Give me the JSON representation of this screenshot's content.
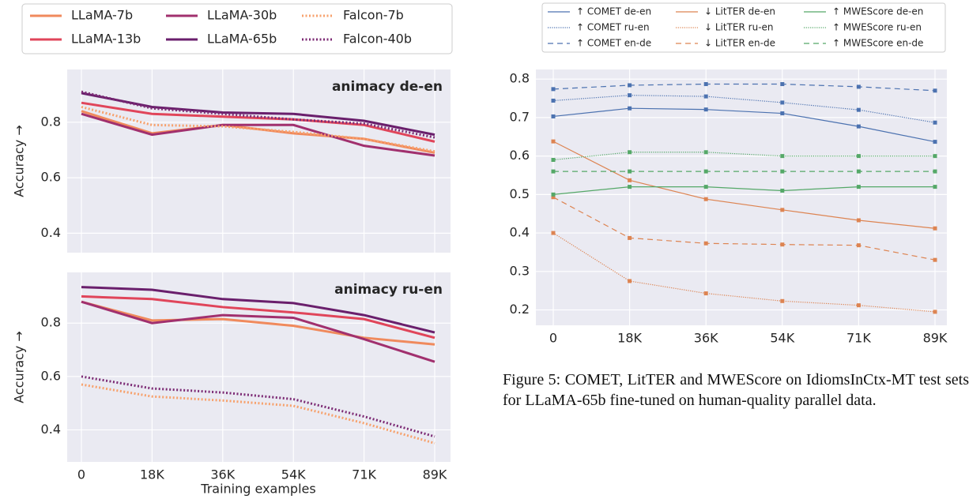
{
  "chart_data": [
    {
      "type": "line",
      "categories": [
        "0",
        "18K",
        "36K",
        "54K",
        "71K",
        "89K"
      ],
      "xlabel": "Training examples",
      "series": [
        {
          "name": "LLaMA-7b",
          "color": "#f08a5d",
          "style": "solid"
        },
        {
          "name": "LLaMA-13b",
          "color": "#e0455a",
          "style": "solid"
        },
        {
          "name": "LLaMA-30b",
          "color": "#a1306e",
          "style": "solid"
        },
        {
          "name": "LLaMA-65b",
          "color": "#6a1f6c",
          "style": "solid"
        },
        {
          "name": "Falcon-7b",
          "color": "#f7a16c",
          "style": "dotted"
        },
        {
          "name": "Falcon-40b",
          "color": "#7c2a74",
          "style": "dotted"
        }
      ],
      "panels": [
        {
          "title": "animacy de-en",
          "ylabel": "Accuracy →",
          "ylim": [
            0.33,
            0.99
          ],
          "yticks": [
            0.4,
            0.6,
            0.8
          ],
          "values": [
            [
              0.84,
              0.76,
              0.79,
              0.76,
              0.74,
              0.69
            ],
            [
              0.87,
              0.83,
              0.82,
              0.81,
              0.79,
              0.73
            ],
            [
              0.83,
              0.755,
              0.79,
              0.79,
              0.715,
              0.68
            ],
            [
              0.905,
              0.855,
              0.835,
              0.83,
              0.805,
              0.755
            ],
            [
              0.855,
              0.79,
              0.785,
              0.765,
              0.74,
              0.695
            ],
            [
              0.91,
              0.85,
              0.83,
              0.81,
              0.795,
              0.745
            ]
          ]
        },
        {
          "title": "animacy ru-en",
          "ylabel": "Accuracy →",
          "ylim": [
            0.28,
            0.99
          ],
          "yticks": [
            0.4,
            0.6,
            0.8
          ],
          "values": [
            [
              0.88,
              0.81,
              0.815,
              0.79,
              0.745,
              0.72
            ],
            [
              0.9,
              0.89,
              0.86,
              0.84,
              0.815,
              0.745
            ],
            [
              0.88,
              0.8,
              0.83,
              0.82,
              0.74,
              0.655
            ],
            [
              0.935,
              0.925,
              0.89,
              0.875,
              0.83,
              0.765
            ],
            [
              0.57,
              0.525,
              0.51,
              0.49,
              0.425,
              0.35
            ],
            [
              0.6,
              0.555,
              0.54,
              0.515,
              0.45,
              0.375
            ]
          ]
        }
      ]
    },
    {
      "type": "line",
      "categories": [
        "0",
        "18K",
        "36K",
        "54K",
        "71K",
        "89K"
      ],
      "ylim": [
        0.16,
        0.825
      ],
      "yticks": [
        0.2,
        0.3,
        0.4,
        0.5,
        0.6,
        0.7,
        0.8
      ],
      "marker": "square",
      "caption": "Figure 5: COMET, LitTER and MWEScore on IdiomsInCtx-MT test sets for LLaMA-65b fine-tuned on human-quality parallel data.",
      "series": [
        {
          "name": "↑ COMET de-en",
          "color": "#4c72b0",
          "style": "solid",
          "values": [
            0.703,
            0.724,
            0.721,
            0.711,
            0.677,
            0.637
          ]
        },
        {
          "name": "↑ COMET ru-en",
          "color": "#4c72b0",
          "style": "dotted",
          "values": [
            0.744,
            0.758,
            0.755,
            0.739,
            0.72,
            0.687
          ]
        },
        {
          "name": "↑ COMET en-de",
          "color": "#4c72b0",
          "style": "dashed",
          "values": [
            0.774,
            0.784,
            0.787,
            0.787,
            0.78,
            0.77
          ]
        },
        {
          "name": "↓ LitTER de-en",
          "color": "#dd8452",
          "style": "solid",
          "values": [
            0.638,
            0.537,
            0.488,
            0.46,
            0.433,
            0.412
          ]
        },
        {
          "name": "↓ LitTER ru-en",
          "color": "#dd8452",
          "style": "dotted",
          "values": [
            0.4,
            0.275,
            0.243,
            0.223,
            0.212,
            0.195
          ]
        },
        {
          "name": "↓ LitTER en-de",
          "color": "#dd8452",
          "style": "dashed",
          "values": [
            0.493,
            0.387,
            0.373,
            0.37,
            0.368,
            0.33
          ]
        },
        {
          "name": "↑ MWEScore de-en",
          "color": "#55a868",
          "style": "solid",
          "values": [
            0.5,
            0.52,
            0.52,
            0.51,
            0.52,
            0.52
          ]
        },
        {
          "name": "↑ MWEScore ru-en",
          "color": "#55a868",
          "style": "dotted",
          "values": [
            0.59,
            0.61,
            0.61,
            0.6,
            0.6,
            0.6
          ]
        },
        {
          "name": "↑ MWEScore en-de",
          "color": "#55a868",
          "style": "dashed",
          "values": [
            0.56,
            0.56,
            0.56,
            0.56,
            0.56,
            0.56
          ]
        }
      ]
    }
  ]
}
